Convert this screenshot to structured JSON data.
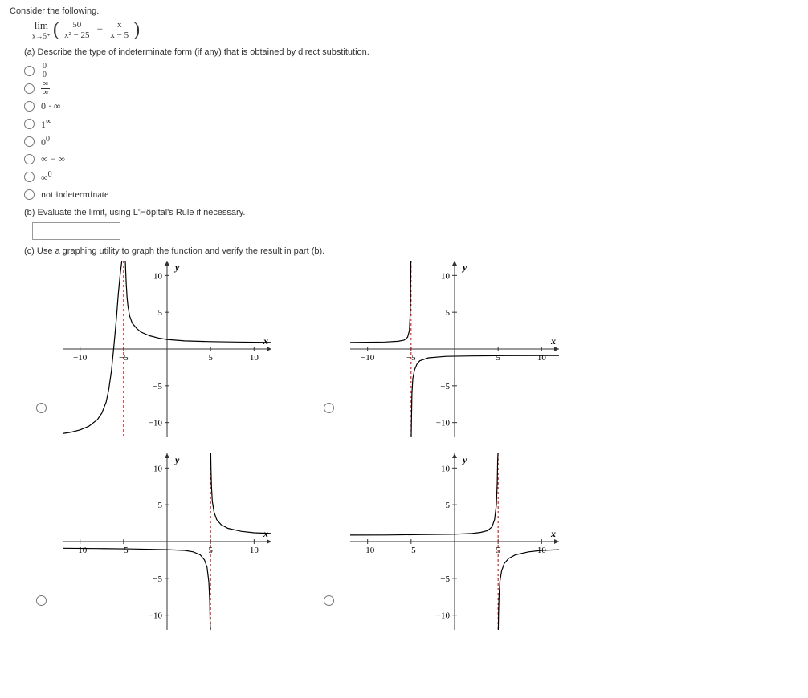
{
  "intro": "Consider the following.",
  "limit": {
    "lim_text": "lim",
    "lim_under": "x→5⁺",
    "f1_num": "50",
    "f1_den": "x² − 25",
    "minus": "−",
    "f2_num": "x",
    "f2_den": "x − 5"
  },
  "part_a": {
    "prompt": "(a) Describe the type of indeterminate form (if any) that is obtained by direct substitution.",
    "options": [
      {
        "type": "frac",
        "num": "0",
        "den": "0"
      },
      {
        "type": "frac",
        "num": "∞",
        "den": "∞"
      },
      {
        "type": "text",
        "label": "0 · ∞"
      },
      {
        "type": "html",
        "label": "1<sup>∞</sup>"
      },
      {
        "type": "html",
        "label": "0<sup>0</sup>"
      },
      {
        "type": "text",
        "label": "∞ − ∞"
      },
      {
        "type": "html",
        "label": "∞<sup>0</sup>"
      },
      {
        "type": "text",
        "label": "not indeterminate"
      }
    ]
  },
  "part_b": {
    "prompt": "(b) Evaluate the limit, using L'Hôpital's Rule if necessary.",
    "value": ""
  },
  "part_c": {
    "prompt": "(c) Use a graphing utility to graph the function and verify the result in part (b).",
    "axis": {
      "x_label": "x",
      "y_label": "y",
      "xlim": [
        -12,
        12
      ],
      "ylim": [
        -12,
        12
      ],
      "xticks": [
        -10,
        -5,
        5,
        10
      ],
      "yticks": [
        -10,
        -5,
        5,
        10
      ]
    },
    "style": {
      "axis_color": "#333333",
      "curve_color": "#000000",
      "asymptote_color": "#cc0000",
      "curve_width": 1.2,
      "asymptote_dash": "3,3",
      "background": "#ffffff"
    },
    "graphs": [
      {
        "id": "g1",
        "asymptotes_x": [
          -5
        ],
        "curves": [
          [
            [
              -12,
              -11.5
            ],
            [
              -11,
              -11.3
            ],
            [
              -10,
              -11
            ],
            [
              -9,
              -10.5
            ],
            [
              -8,
              -9.6
            ],
            [
              -7.5,
              -8.7
            ],
            [
              -7,
              -7.2
            ],
            [
              -6.7,
              -5.5
            ],
            [
              -6.4,
              -3
            ],
            [
              -6.1,
              0.5
            ],
            [
              -5.8,
              4.5
            ],
            [
              -5.6,
              7.5
            ],
            [
              -5.4,
              10
            ],
            [
              -5.2,
              12
            ]
          ],
          [
            [
              -4.8,
              12
            ],
            [
              -4.7,
              9
            ],
            [
              -4.6,
              7
            ],
            [
              -4.5,
              5.8
            ],
            [
              -4.3,
              4.5
            ],
            [
              -4,
              3.5
            ],
            [
              -3.5,
              2.8
            ],
            [
              -3,
              2.3
            ],
            [
              -2,
              1.8
            ],
            [
              -1,
              1.5
            ],
            [
              0,
              1.3
            ],
            [
              2,
              1.1
            ],
            [
              5,
              1
            ],
            [
              8,
              0.95
            ],
            [
              12,
              0.9
            ]
          ]
        ]
      },
      {
        "id": "g2",
        "asymptotes_x": [
          -5
        ],
        "curves": [
          [
            [
              -12,
              0.9
            ],
            [
              -8,
              0.95
            ],
            [
              -6.5,
              1.05
            ],
            [
              -5.8,
              1.2
            ],
            [
              -5.4,
              1.6
            ],
            [
              -5.2,
              2.5
            ],
            [
              -5.1,
              5
            ],
            [
              -5.05,
              9
            ],
            [
              -5.02,
              12
            ]
          ],
          [
            [
              -4.98,
              -12
            ],
            [
              -4.95,
              -9
            ],
            [
              -4.9,
              -6
            ],
            [
              -4.8,
              -4
            ],
            [
              -4.6,
              -2.8
            ],
            [
              -4.3,
              -2
            ],
            [
              -4,
              -1.6
            ],
            [
              -3,
              -1.2
            ],
            [
              -1,
              -1
            ],
            [
              2,
              -0.95
            ],
            [
              6,
              -0.9
            ],
            [
              12,
              -0.88
            ]
          ]
        ]
      },
      {
        "id": "g3",
        "asymptotes_x": [
          5
        ],
        "curves": [
          [
            [
              -12,
              -0.9
            ],
            [
              -8,
              -0.95
            ],
            [
              -4,
              -1
            ],
            [
              0,
              -1.1
            ],
            [
              2,
              -1.2
            ],
            [
              3,
              -1.4
            ],
            [
              3.8,
              -1.8
            ],
            [
              4.3,
              -2.5
            ],
            [
              4.6,
              -3.5
            ],
            [
              4.8,
              -5.5
            ],
            [
              4.9,
              -8
            ],
            [
              4.95,
              -11
            ],
            [
              4.98,
              -12
            ]
          ],
          [
            [
              5.02,
              12
            ],
            [
              5.05,
              10
            ],
            [
              5.1,
              7.5
            ],
            [
              5.2,
              5.5
            ],
            [
              5.4,
              4
            ],
            [
              5.7,
              3
            ],
            [
              6.2,
              2.3
            ],
            [
              7,
              1.8
            ],
            [
              8.5,
              1.4
            ],
            [
              10,
              1.2
            ],
            [
              12,
              1.1
            ]
          ]
        ]
      },
      {
        "id": "g4",
        "asymptotes_x": [
          5
        ],
        "curves": [
          [
            [
              -12,
              0.88
            ],
            [
              -8,
              0.9
            ],
            [
              -4,
              0.95
            ],
            [
              0,
              1
            ],
            [
              2,
              1.1
            ],
            [
              3,
              1.25
            ],
            [
              3.8,
              1.5
            ],
            [
              4.3,
              2
            ],
            [
              4.6,
              3
            ],
            [
              4.8,
              5
            ],
            [
              4.9,
              8
            ],
            [
              4.95,
              11
            ],
            [
              4.98,
              12
            ]
          ],
          [
            [
              5.02,
              -12
            ],
            [
              5.05,
              -10
            ],
            [
              5.1,
              -7.5
            ],
            [
              5.2,
              -5.5
            ],
            [
              5.4,
              -4
            ],
            [
              5.7,
              -3
            ],
            [
              6.2,
              -2.3
            ],
            [
              7,
              -1.8
            ],
            [
              8.5,
              -1.4
            ],
            [
              10,
              -1.2
            ],
            [
              12,
              -1.1
            ]
          ]
        ]
      }
    ]
  }
}
